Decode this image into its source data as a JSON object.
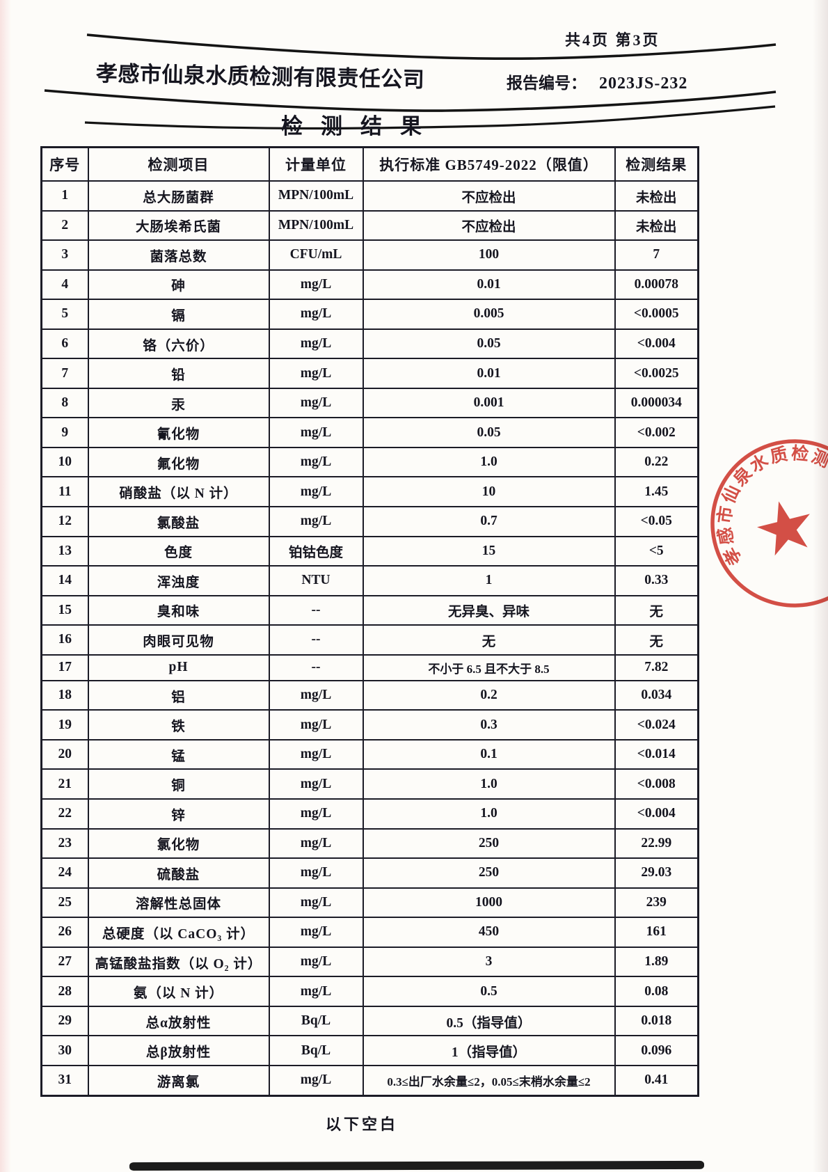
{
  "page": {
    "page_info": "共4页 第3页",
    "company_name": "孝感市仙泉水质检测有限责任公司",
    "report_no_label": "报告编号：",
    "report_no": "2023JS-232",
    "title": "检测结果",
    "footer_note": "以下空白"
  },
  "table": {
    "headers": [
      "序号",
      "检测项目",
      "计量单位",
      "执行标准 GB5749-2022（限值）",
      "检测结果"
    ],
    "rows": [
      [
        "1",
        "总大肠菌群",
        "MPN/100mL",
        "不应检出",
        "未检出"
      ],
      [
        "2",
        "大肠埃希氏菌",
        "MPN/100mL",
        "不应检出",
        "未检出"
      ],
      [
        "3",
        "菌落总数",
        "CFU/mL",
        "100",
        "7"
      ],
      [
        "4",
        "砷",
        "mg/L",
        "0.01",
        "0.00078"
      ],
      [
        "5",
        "镉",
        "mg/L",
        "0.005",
        "<0.0005"
      ],
      [
        "6",
        "铬（六价）",
        "mg/L",
        "0.05",
        "<0.004"
      ],
      [
        "7",
        "铅",
        "mg/L",
        "0.01",
        "<0.0025"
      ],
      [
        "8",
        "汞",
        "mg/L",
        "0.001",
        "0.000034"
      ],
      [
        "9",
        "氰化物",
        "mg/L",
        "0.05",
        "<0.002"
      ],
      [
        "10",
        "氟化物",
        "mg/L",
        "1.0",
        "0.22"
      ],
      [
        "11",
        "硝酸盐（以 N 计）",
        "mg/L",
        "10",
        "1.45"
      ],
      [
        "12",
        "氯酸盐",
        "mg/L",
        "0.7",
        "<0.05"
      ],
      [
        "13",
        "色度",
        "铂钴色度",
        "15",
        "<5"
      ],
      [
        "14",
        "浑浊度",
        "NTU",
        "1",
        "0.33"
      ],
      [
        "15",
        "臭和味",
        "--",
        "无异臭、异味",
        "无"
      ],
      [
        "16",
        "肉眼可见物",
        "--",
        "无",
        "无"
      ],
      [
        "17",
        "pH",
        "--",
        "不小于 6.5 且不大于 8.5",
        "7.82"
      ],
      [
        "18",
        "铝",
        "mg/L",
        "0.2",
        "0.034"
      ],
      [
        "19",
        "铁",
        "mg/L",
        "0.3",
        "<0.024"
      ],
      [
        "20",
        "锰",
        "mg/L",
        "0.1",
        "<0.014"
      ],
      [
        "21",
        "铜",
        "mg/L",
        "1.0",
        "<0.008"
      ],
      [
        "22",
        "锌",
        "mg/L",
        "1.0",
        "<0.004"
      ],
      [
        "23",
        "氯化物",
        "mg/L",
        "250",
        "22.99"
      ],
      [
        "24",
        "硫酸盐",
        "mg/L",
        "250",
        "29.03"
      ],
      [
        "25",
        "溶解性总固体",
        "mg/L",
        "1000",
        "239"
      ],
      [
        "26",
        "总硬度（以 CaCO₃ 计）",
        "mg/L",
        "450",
        "161"
      ],
      [
        "27",
        "高锰酸盐指数（以 O₂ 计）",
        "mg/L",
        "3",
        "1.89"
      ],
      [
        "28",
        "氨（以 N 计）",
        "mg/L",
        "0.5",
        "0.08"
      ],
      [
        "29",
        "总α放射性",
        "Bq/L",
        "0.5（指导值）",
        "0.018"
      ],
      [
        "30",
        "总β放射性",
        "Bq/L",
        "1（指导值）",
        "0.096"
      ],
      [
        "31",
        "游离氯",
        "mg/L",
        "0.3≤出厂水余量≤2，0.05≤末梢水余量≤2",
        "0.41"
      ]
    ]
  },
  "stamp": {
    "ring_text": "孝感市仙泉水质检测有限责任公司",
    "star": "★",
    "color": "#cf372d"
  },
  "colors": {
    "ink": "#1b1b26",
    "paper": "#fdfcf9",
    "stamp_red": "#cf372d"
  }
}
